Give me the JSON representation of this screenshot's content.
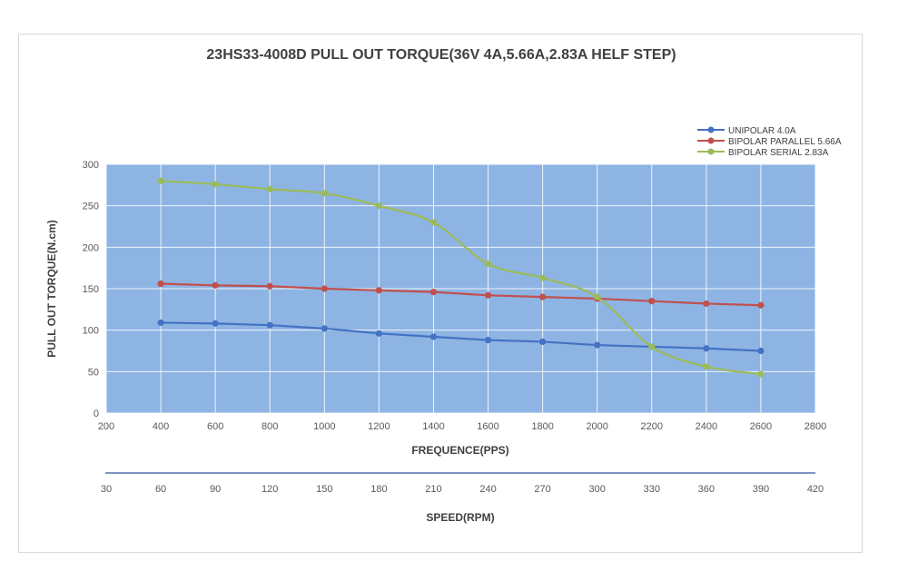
{
  "chart_data": {
    "type": "line",
    "title": "23HS33-4008D  PULL OUT TORQUE(36V   4A,5.66A,2.83A      HELF STEP)",
    "xlabel": "FREQUENCE(PPS)",
    "ylabel": "PULL OUT TORQUE(N.cm)",
    "secondary_xlabel": "SPEED(RPM)",
    "xlim": [
      200,
      2800
    ],
    "ylim": [
      0,
      300
    ],
    "x_ticks": [
      "200",
      "400",
      "600",
      "800",
      "1000",
      "1200",
      "1400",
      "1600",
      "1800",
      "2000",
      "2200",
      "2400",
      "2600",
      "2800"
    ],
    "y_ticks": [
      "0",
      "50",
      "100",
      "150",
      "200",
      "250",
      "300"
    ],
    "secondary_x_ticks": [
      "30",
      "60",
      "90",
      "120",
      "150",
      "180",
      "210",
      "240",
      "270",
      "300",
      "330",
      "360",
      "390",
      "420"
    ],
    "grid": true,
    "plot_background": "#8EB4E3",
    "legend_position": "top-right",
    "x": [
      400,
      600,
      800,
      1000,
      1200,
      1400,
      1600,
      1800,
      2000,
      2200,
      2400,
      2600
    ],
    "series": [
      {
        "name": "UNIPOLAR 4.0A",
        "color": "#4472C4",
        "smooth": false,
        "values": [
          109,
          108,
          106,
          102,
          96,
          92,
          88,
          86,
          82,
          80,
          78,
          75
        ]
      },
      {
        "name": "BIPOLAR PARALLEL 5.66A",
        "color": "#C0504D",
        "smooth": false,
        "values": [
          156,
          154,
          153,
          150,
          148,
          146,
          142,
          140,
          138,
          135,
          132,
          130
        ]
      },
      {
        "name": "BIPOLAR SERIAL 2.83A",
        "color": "#9BBB59",
        "smooth": true,
        "values": [
          280,
          276,
          270,
          265,
          250,
          230,
          180,
          163,
          140,
          80,
          56,
          47
        ]
      }
    ]
  }
}
